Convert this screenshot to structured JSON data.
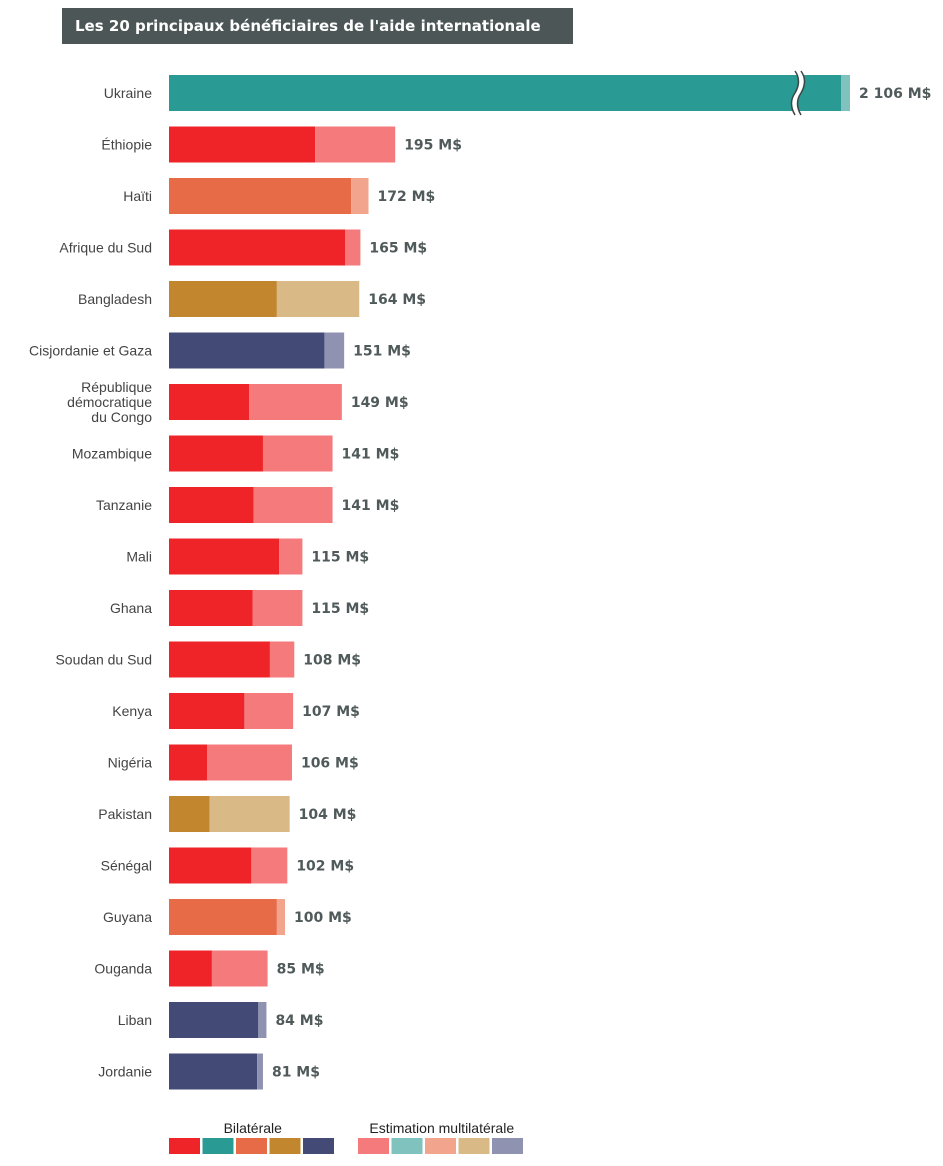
{
  "chart_data": {
    "type": "bar",
    "orientation": "horizontal",
    "stacked": true,
    "title": "Les 20 principaux bénéficiaires de l'aide internationale",
    "unit": "M$",
    "axis_break": true,
    "legend": {
      "placement": "bottom",
      "bilateral_label": "Bilatérale",
      "multilateral_label": "Estimation multilatérale",
      "bilateral_colors": [
        "#ee2429",
        "#2a9a94",
        "#e86b48",
        "#c2872e",
        "#444a76"
      ],
      "multilateral_colors": [
        "#f47a7c",
        "#7fc2be",
        "#f2a48c",
        "#d9b985",
        "#8f92b0"
      ]
    },
    "series": [
      {
        "name": "Bilatérale"
      },
      {
        "name": "Estimation multilatérale"
      }
    ],
    "rows": [
      {
        "category": "Ukraine",
        "total": 2106,
        "total_label": "2 106 M$",
        "bilateral": 2076,
        "multilateral": 30,
        "color": "#2a9a94",
        "light_color": "#7fc2be",
        "broken": true
      },
      {
        "category": "Éthiopie",
        "total": 195,
        "total_label": "195 M$",
        "bilateral": 126,
        "multilateral": 69,
        "color": "#ee2429",
        "light_color": "#f47a7c"
      },
      {
        "category": "Haïti",
        "total": 172,
        "total_label": "172 M$",
        "bilateral": 157,
        "multilateral": 15,
        "color": "#e86b48",
        "light_color": "#f2a48c"
      },
      {
        "category": "Afrique du Sud",
        "total": 165,
        "total_label": "165 M$",
        "bilateral": 152,
        "multilateral": 13,
        "color": "#ee2429",
        "light_color": "#f47a7c"
      },
      {
        "category": "Bangladesh",
        "total": 164,
        "total_label": "164 M$",
        "bilateral": 93,
        "multilateral": 71,
        "color": "#c2872e",
        "light_color": "#d9b985"
      },
      {
        "category": "Cisjordanie et Gaza",
        "total": 151,
        "total_label": "151 M$",
        "bilateral": 134,
        "multilateral": 17,
        "color": "#444a76",
        "light_color": "#8f92b0"
      },
      {
        "category": "République démocratique du Congo",
        "total": 149,
        "total_label": "149 M$",
        "bilateral": 69,
        "multilateral": 80,
        "color": "#ee2429",
        "light_color": "#f47a7c"
      },
      {
        "category": "Mozambique",
        "total": 141,
        "total_label": "141 M$",
        "bilateral": 81,
        "multilateral": 60,
        "color": "#ee2429",
        "light_color": "#f47a7c"
      },
      {
        "category": "Tanzanie",
        "total": 141,
        "total_label": "141 M$",
        "bilateral": 73,
        "multilateral": 68,
        "color": "#ee2429",
        "light_color": "#f47a7c"
      },
      {
        "category": "Mali",
        "total": 115,
        "total_label": "115 M$",
        "bilateral": 95,
        "multilateral": 20,
        "color": "#ee2429",
        "light_color": "#f47a7c"
      },
      {
        "category": "Ghana",
        "total": 115,
        "total_label": "115 M$",
        "bilateral": 72,
        "multilateral": 43,
        "color": "#ee2429",
        "light_color": "#f47a7c"
      },
      {
        "category": "Soudan du Sud",
        "total": 108,
        "total_label": "108 M$",
        "bilateral": 87,
        "multilateral": 21,
        "color": "#ee2429",
        "light_color": "#f47a7c"
      },
      {
        "category": "Kenya",
        "total": 107,
        "total_label": "107 M$",
        "bilateral": 65,
        "multilateral": 42,
        "color": "#ee2429",
        "light_color": "#f47a7c"
      },
      {
        "category": "Nigéria",
        "total": 106,
        "total_label": "106 M$",
        "bilateral": 33,
        "multilateral": 73,
        "color": "#ee2429",
        "light_color": "#f47a7c"
      },
      {
        "category": "Pakistan",
        "total": 104,
        "total_label": "104 M$",
        "bilateral": 35,
        "multilateral": 69,
        "color": "#c2872e",
        "light_color": "#d9b985"
      },
      {
        "category": "Sénégal",
        "total": 102,
        "total_label": "102 M$",
        "bilateral": 71,
        "multilateral": 31,
        "color": "#ee2429",
        "light_color": "#f47a7c"
      },
      {
        "category": "Guyana",
        "total": 100,
        "total_label": "100 M$",
        "bilateral": 93,
        "multilateral": 7,
        "color": "#e86b48",
        "light_color": "#f2a48c"
      },
      {
        "category": "Ouganda",
        "total": 85,
        "total_label": "85 M$",
        "bilateral": 37,
        "multilateral": 48,
        "color": "#ee2429",
        "light_color": "#f47a7c"
      },
      {
        "category": "Liban",
        "total": 84,
        "total_label": "84 M$",
        "bilateral": 77,
        "multilateral": 7,
        "color": "#444a76",
        "light_color": "#8f92b0"
      },
      {
        "category": "Jordanie",
        "total": 81,
        "total_label": "81 M$",
        "bilateral": 76,
        "multilateral": 5,
        "color": "#444a76",
        "light_color": "#8f92b0"
      }
    ]
  }
}
